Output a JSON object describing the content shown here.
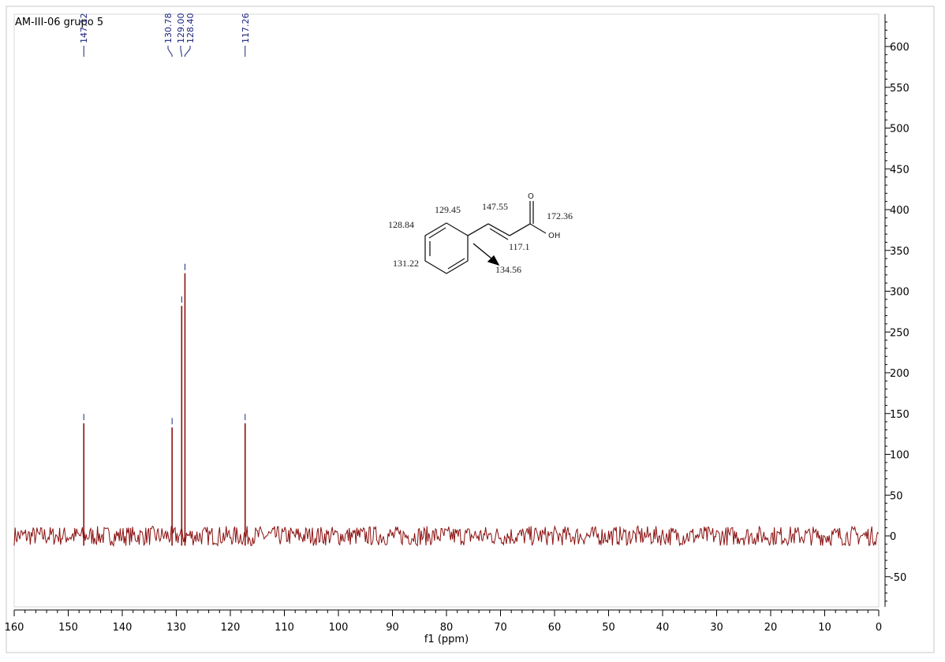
{
  "title": "AM-III-06 grupo 5",
  "chart_data": {
    "type": "line",
    "title": "AM-III-06 grupo 5",
    "xlabel": "f1 (ppm)",
    "ylabel": "",
    "xlim": [
      160,
      0
    ],
    "ylim": [
      -90,
      640
    ],
    "x_reversed": true,
    "grid": false,
    "x_ticks": [
      160,
      150,
      140,
      130,
      120,
      110,
      100,
      90,
      80,
      70,
      60,
      50,
      40,
      30,
      20,
      10,
      0
    ],
    "y_ticks": [
      600,
      550,
      500,
      450,
      400,
      350,
      300,
      250,
      200,
      150,
      100,
      50,
      0,
      -50
    ],
    "baseline_noise_amplitude": 12,
    "peaks": [
      {
        "x": 147.12,
        "y": 138,
        "label": "147.12"
      },
      {
        "x": 130.78,
        "y": 133,
        "label": "130.78"
      },
      {
        "x": 129.0,
        "y": 282,
        "label": "129.00"
      },
      {
        "x": 128.4,
        "y": 322,
        "label": "128.40"
      },
      {
        "x": 117.26,
        "y": 138,
        "label": "117.26"
      }
    ]
  },
  "structure": {
    "labels": [
      {
        "text": "129.45",
        "role": "ortho-carbon-shift"
      },
      {
        "text": "147.55",
        "role": "beta-carbon-shift"
      },
      {
        "text": "172.36",
        "role": "carbonyl-shift"
      },
      {
        "text": "128.84",
        "role": "meta-carbon-shift"
      },
      {
        "text": "131.22",
        "role": "para-carbon-shift"
      },
      {
        "text": "117.1",
        "role": "alpha-carbon-shift"
      },
      {
        "text": "134.56",
        "role": "ipso-carbon-shift"
      },
      {
        "text": "O",
        "role": "oxygen-atom"
      },
      {
        "text": "OH",
        "role": "hydroxyl-group"
      }
    ]
  },
  "colors": {
    "spectrum": "#8b1010",
    "peak_labels": "#1a237e",
    "frame": "#9e9e9e",
    "text": "#000000"
  }
}
